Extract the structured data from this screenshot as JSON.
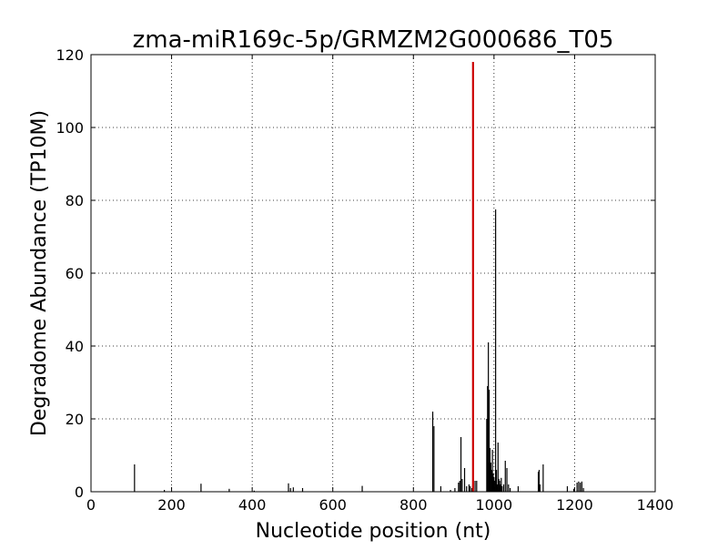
{
  "chart_data": {
    "type": "bar",
    "title": "zma-miR169c-5p/GRMZM2G000686_T05",
    "xlabel": "Nucleotide position (nt)",
    "ylabel": "Degradome Abundance (TP10M)",
    "xlim": [
      0,
      1400
    ],
    "ylim": [
      0,
      120
    ],
    "xticks": [
      0,
      200,
      400,
      600,
      800,
      1000,
      1200,
      1400
    ],
    "yticks": [
      0,
      20,
      40,
      60,
      80,
      100,
      120
    ],
    "grid": true,
    "grid_style": "dotted",
    "background_series_color": "#000000",
    "highlight_color": "#cc0000",
    "x": [
      108,
      182,
      273,
      343,
      405,
      490,
      495,
      502,
      525,
      673,
      848,
      851,
      868,
      892,
      903,
      912,
      915,
      918,
      921,
      927,
      932,
      938,
      941,
      945,
      953,
      957,
      982,
      984,
      986,
      988,
      990,
      992,
      994,
      996,
      998,
      1000,
      1002,
      1004,
      1006,
      1008,
      1010,
      1012,
      1014,
      1016,
      1018,
      1020,
      1024,
      1028,
      1032,
      1036,
      1040,
      1060,
      1110,
      1112,
      1114,
      1122,
      1182,
      1198,
      1206,
      1210,
      1214,
      1218,
      1222
    ],
    "values": [
      7.5,
      0.5,
      2.2,
      0.8,
      0.3,
      2.3,
      1.0,
      1.2,
      1.0,
      1.6,
      22.0,
      18.0,
      1.5,
      0.5,
      1.0,
      2.5,
      3.0,
      15.0,
      3.5,
      6.5,
      1.5,
      2.0,
      1.5,
      1.0,
      3.0,
      3.0,
      20.0,
      29.0,
      41.0,
      28.0,
      12.0,
      8.0,
      6.0,
      11.5,
      5.0,
      4.0,
      3.0,
      77.5,
      6.0,
      2.0,
      13.5,
      3.5,
      3.0,
      2.0,
      3.8,
      1.5,
      2.0,
      8.5,
      6.5,
      2.0,
      1.0,
      1.5,
      5.5,
      6.0,
      2.0,
      7.5,
      1.5,
      0.8,
      2.5,
      2.8,
      2.5,
      2.8,
      1.0
    ],
    "highlight": {
      "x": 948,
      "value": 118.0
    }
  }
}
